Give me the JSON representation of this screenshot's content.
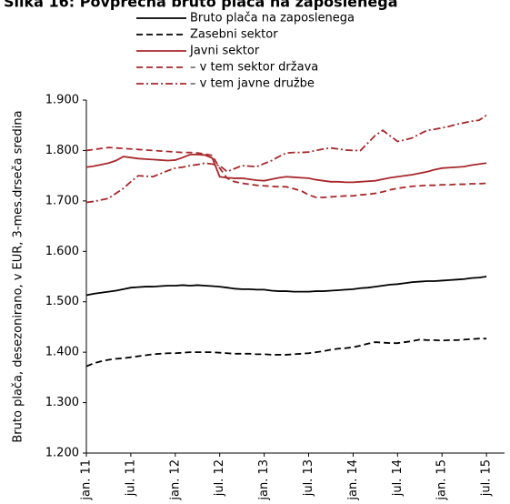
{
  "chart_data": {
    "type": "line",
    "title": "Slika 16: Povprečna bruto plača na zaposlenega",
    "y_label": "Bruto plača, desezonirano, v EUR, 3-mes.drseča sredina",
    "categories": [
      "jan. 11",
      null,
      null,
      null,
      null,
      null,
      "jul. 11",
      null,
      null,
      null,
      null,
      null,
      "jan. 12",
      null,
      null,
      null,
      null,
      null,
      "jul. 12",
      null,
      null,
      null,
      null,
      null,
      "jan. 13",
      null,
      null,
      null,
      null,
      null,
      "jul. 13",
      null,
      null,
      null,
      null,
      null,
      "jan. 14",
      null,
      null,
      null,
      null,
      null,
      "jul. 14",
      null,
      null,
      null,
      null,
      null,
      "jan. 15",
      null,
      null,
      null,
      null,
      null,
      "jul. 15"
    ],
    "ylim": [
      1200,
      1900
    ],
    "yticks": [
      {
        "value": 1200,
        "label": "1.200"
      },
      {
        "value": 1300,
        "label": "1.300"
      },
      {
        "value": 1400,
        "label": "1.400"
      },
      {
        "value": 1500,
        "label": "1.500"
      },
      {
        "value": 1600,
        "label": "1.600"
      },
      {
        "value": 1700,
        "label": "1.700"
      },
      {
        "value": 1800,
        "label": "1.800"
      },
      {
        "value": 1900,
        "label": "1.900"
      }
    ],
    "grid": false,
    "legend": "top",
    "series": [
      {
        "name": "Bruto plača na zaposlenega",
        "color": "#000000",
        "dash": "solid",
        "values": [
          1513,
          1516,
          1518,
          1520,
          1522,
          1525,
          1528,
          1529,
          1530,
          1530,
          1531,
          1532,
          1532,
          1533,
          1532,
          1533,
          1532,
          1531,
          1530,
          1528,
          1526,
          1525,
          1525,
          1524,
          1524,
          1522,
          1521,
          1521,
          1520,
          1520,
          1520,
          1521,
          1521,
          1522,
          1523,
          1524,
          1525,
          1527,
          1528,
          1530,
          1532,
          1534,
          1535,
          1537,
          1539,
          1540,
          1541,
          1541,
          1542,
          1543,
          1544,
          1545,
          1547,
          1548,
          1550
        ]
      },
      {
        "name": "Zasebni sektor",
        "color": "#000000",
        "dash": "dashed",
        "values": [
          1372,
          1378,
          1382,
          1385,
          1387,
          1388,
          1390,
          1392,
          1394,
          1396,
          1397,
          1398,
          1398,
          1399,
          1400,
          1400,
          1400,
          1400,
          1399,
          1398,
          1397,
          1397,
          1397,
          1396,
          1396,
          1395,
          1395,
          1395,
          1396,
          1397,
          1398,
          1400,
          1402,
          1405,
          1407,
          1408,
          1410,
          1413,
          1417,
          1420,
          1419,
          1418,
          1418,
          1420,
          1422,
          1425,
          1424,
          1424,
          1423,
          1424,
          1424,
          1425,
          1426,
          1427,
          1427
        ]
      },
      {
        "name": "Javni sektor",
        "color": "#a8282c",
        "dash": "solid",
        "values": [
          1767,
          1769,
          1772,
          1775,
          1780,
          1788,
          1786,
          1784,
          1783,
          1782,
          1781,
          1780,
          1781,
          1786,
          1792,
          1792,
          1791,
          1785,
          1748,
          1746,
          1745,
          1745,
          1743,
          1741,
          1740,
          1743,
          1746,
          1748,
          1747,
          1746,
          1745,
          1742,
          1740,
          1738,
          1738,
          1737,
          1737,
          1738,
          1739,
          1740,
          1743,
          1746,
          1748,
          1750,
          1752,
          1755,
          1758,
          1762,
          1765,
          1766,
          1767,
          1768,
          1771,
          1773,
          1775
        ]
      },
      {
        "name": "– v tem sektor država",
        "color": "#a8282c",
        "dash": "dashed",
        "values": [
          1800,
          1802,
          1804,
          1806,
          1805,
          1804,
          1803,
          1802,
          1801,
          1800,
          1799,
          1798,
          1797,
          1796,
          1796,
          1795,
          1793,
          1790,
          1765,
          1745,
          1738,
          1735,
          1733,
          1731,
          1730,
          1729,
          1728,
          1728,
          1724,
          1720,
          1712,
          1707,
          1707,
          1708,
          1709,
          1710,
          1710,
          1712,
          1713,
          1715,
          1718,
          1722,
          1725,
          1727,
          1729,
          1730,
          1731,
          1731,
          1732,
          1732,
          1733,
          1733,
          1734,
          1734,
          1735
        ]
      },
      {
        "name": "– v tem javne družbe",
        "color": "#a8282c",
        "dash": "dashdot",
        "values": [
          1697,
          1699,
          1702,
          1705,
          1715,
          1725,
          1738,
          1750,
          1749,
          1748,
          1754,
          1760,
          1765,
          1767,
          1770,
          1772,
          1775,
          1773,
          1770,
          1758,
          1764,
          1770,
          1769,
          1768,
          1774,
          1780,
          1788,
          1795,
          1796,
          1796,
          1797,
          1800,
          1803,
          1805,
          1803,
          1801,
          1800,
          1800,
          1815,
          1830,
          1840,
          1829,
          1818,
          1821,
          1825,
          1833,
          1840,
          1842,
          1845,
          1848,
          1852,
          1855,
          1858,
          1860,
          1870
        ]
      }
    ]
  }
}
